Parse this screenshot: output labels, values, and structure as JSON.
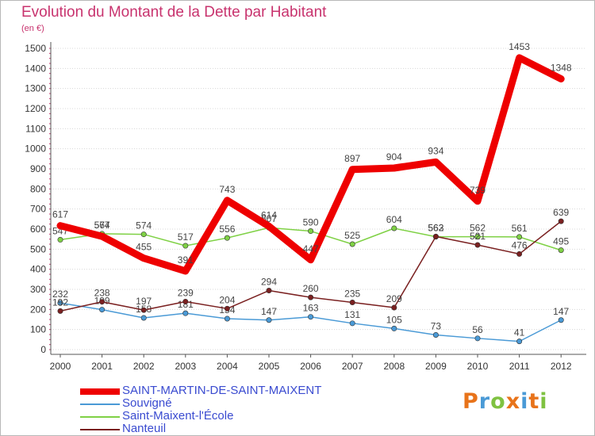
{
  "chart_data": {
    "type": "line",
    "title": "Evolution du Montant de la Dette par Habitant",
    "subtitle": "(en €)",
    "xlabel": "",
    "ylabel": "",
    "x": [
      "2000",
      "2001",
      "2002",
      "2003",
      "2004",
      "2005",
      "2006",
      "2007",
      "2008",
      "2009",
      "2010",
      "2011",
      "2012"
    ],
    "ylim": [
      0,
      1500
    ],
    "yticks": [
      "0",
      "100",
      "200",
      "300",
      "400",
      "500",
      "600",
      "700",
      "800",
      "900",
      "1000",
      "1100",
      "1200",
      "1300",
      "1400",
      "1500"
    ],
    "grid": "horizontal",
    "legend_position": "bottom-left",
    "series": [
      {
        "name": "SAINT-MARTIN-DE-SAINT-MAIXENT",
        "color": "#ee0000",
        "values": [
          617,
          564,
          455,
          391,
          743,
          614,
          447,
          897,
          904,
          934,
          739,
          1453,
          1348
        ]
      },
      {
        "name": "Souvigné",
        "color": "#4a9ad6",
        "values": [
          232,
          199,
          158,
          181,
          154,
          147,
          163,
          131,
          105,
          73,
          56,
          41,
          147
        ]
      },
      {
        "name": "Saint-Maixent-l'École",
        "color": "#7fd145",
        "values": [
          547,
          577,
          574,
          517,
          556,
          607,
          590,
          525,
          604,
          562,
          562,
          561,
          495
        ]
      },
      {
        "name": "Nanteuil",
        "color": "#7a2020",
        "values": [
          192,
          238,
          197,
          239,
          204,
          294,
          260,
          235,
          209,
          563,
          521,
          476,
          639
        ]
      }
    ]
  },
  "branding": {
    "logo": "Proxiti",
    "logo_colors": [
      "#e8731a",
      "#4a9ad6",
      "#7fc241",
      "#e8731a",
      "#4a9ad6",
      "#e8731a",
      "#7fc241"
    ]
  }
}
